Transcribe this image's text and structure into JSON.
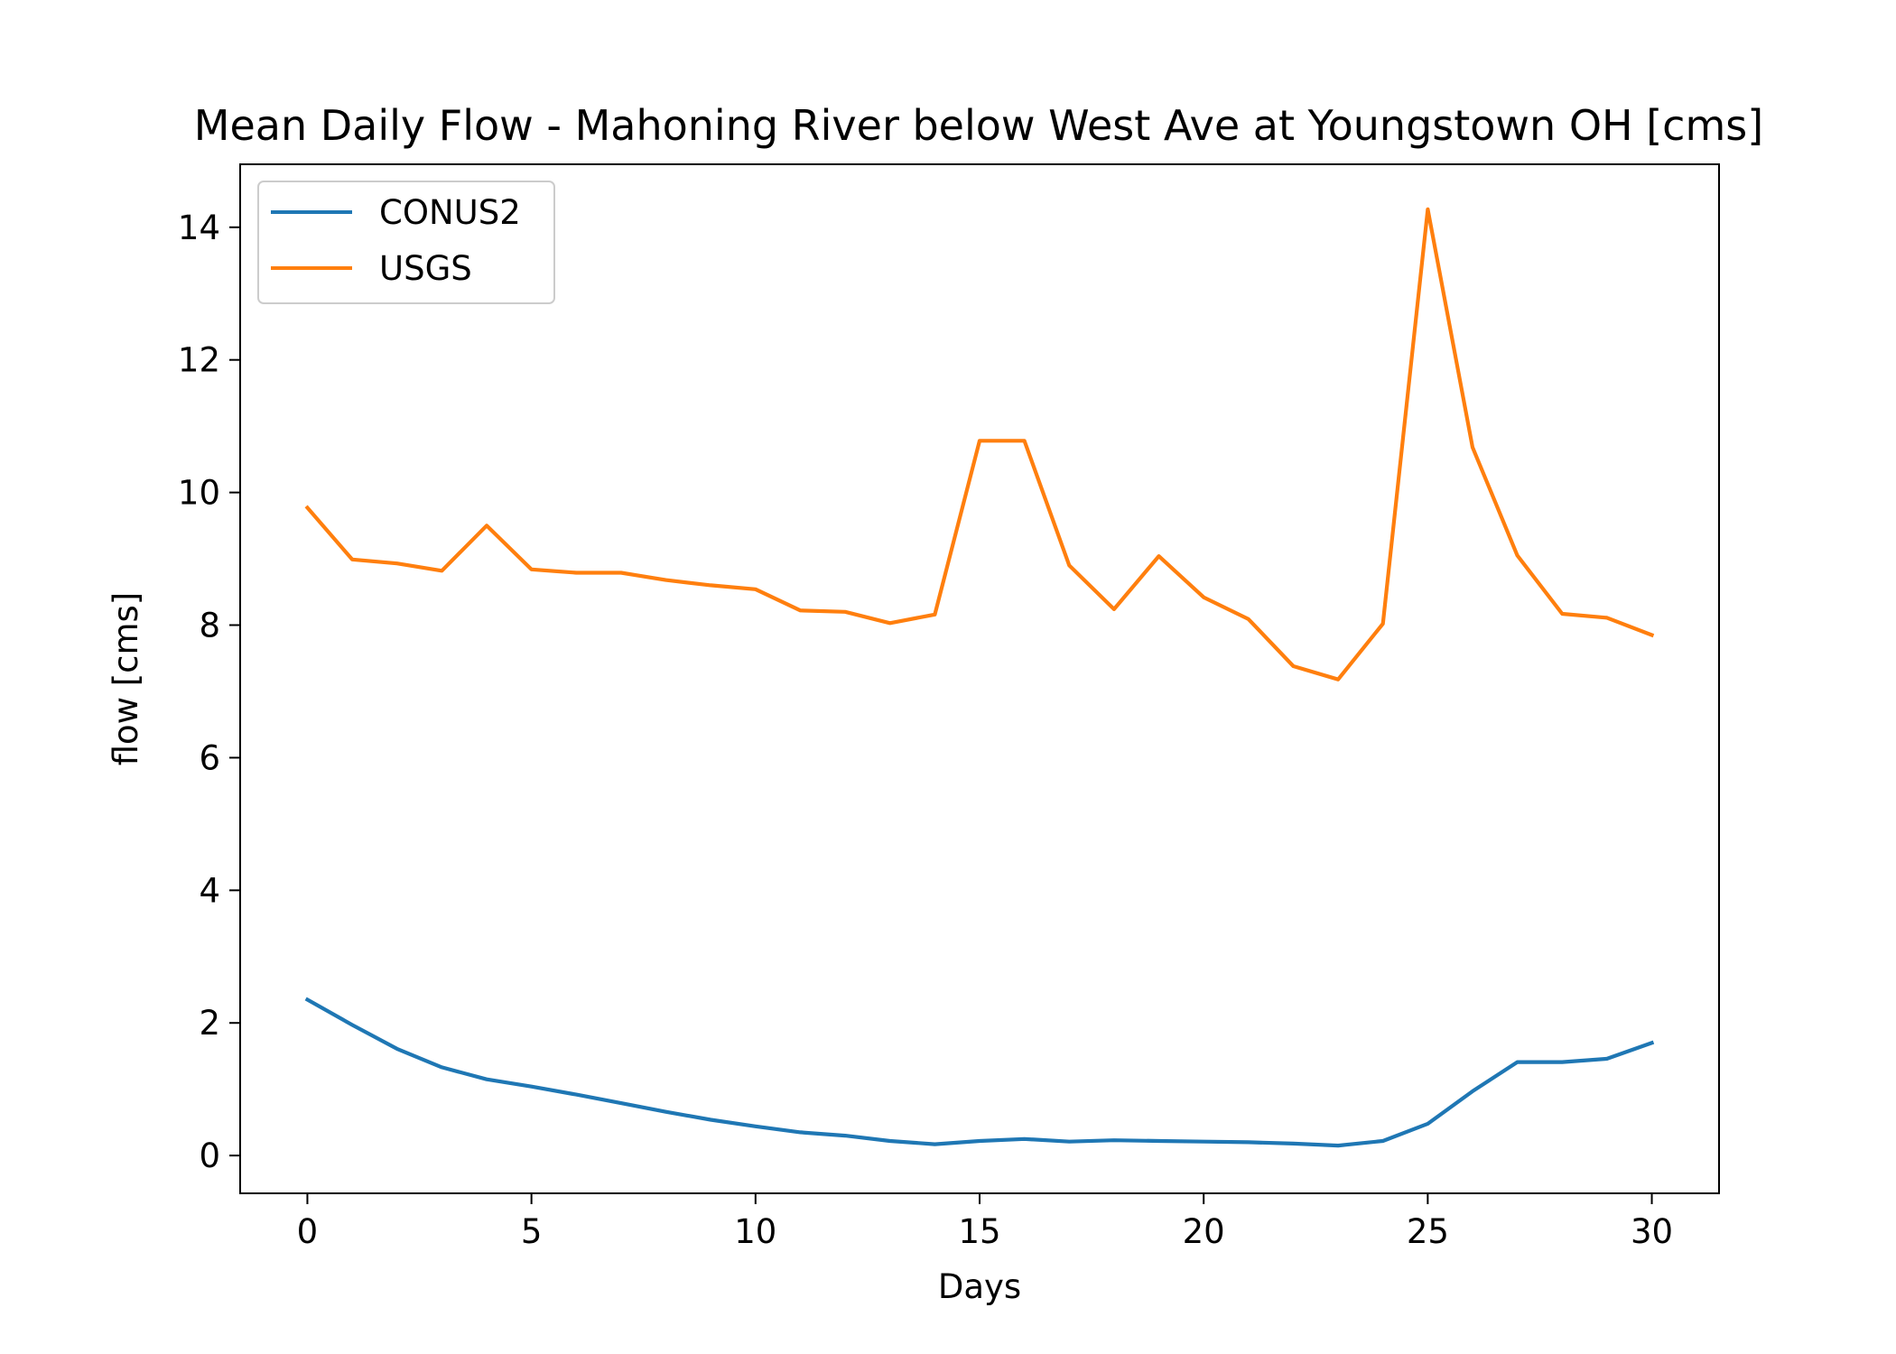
{
  "chart_data": {
    "type": "line",
    "title": "Mean Daily Flow - Mahoning River below West Ave at Youngstown OH [cms]",
    "xlabel": "Days",
    "ylabel": "flow [cms]",
    "xlim": [
      -1.5,
      31.5
    ],
    "ylim": [
      -0.57,
      14.95
    ],
    "xticks": [
      0,
      5,
      10,
      15,
      20,
      25,
      30
    ],
    "xtick_labels": [
      "0",
      "5",
      "10",
      "15",
      "20",
      "25",
      "30"
    ],
    "yticks": [
      0,
      2,
      4,
      6,
      8,
      10,
      12,
      14
    ],
    "ytick_labels": [
      "0",
      "2",
      "4",
      "6",
      "8",
      "10",
      "12",
      "14"
    ],
    "grid": false,
    "legend_position": "top-left",
    "x": [
      0,
      1,
      2,
      3,
      4,
      5,
      6,
      7,
      8,
      9,
      10,
      11,
      12,
      13,
      14,
      15,
      16,
      17,
      18,
      19,
      20,
      21,
      22,
      23,
      24,
      25,
      26,
      27,
      28,
      29,
      30
    ],
    "series": [
      {
        "name": "CONUS2",
        "color": "#1f77b4",
        "values": [
          2.35,
          1.97,
          1.61,
          1.33,
          1.15,
          1.04,
          0.92,
          0.79,
          0.66,
          0.54,
          0.44,
          0.35,
          0.3,
          0.22,
          0.17,
          0.22,
          0.25,
          0.21,
          0.23,
          0.22,
          0.21,
          0.2,
          0.18,
          0.15,
          0.22,
          0.48,
          0.97,
          1.41,
          1.41,
          1.46,
          1.7
        ]
      },
      {
        "name": "USGS",
        "color": "#ff7f0e",
        "values": [
          9.77,
          8.99,
          8.93,
          8.82,
          9.5,
          8.84,
          8.79,
          8.79,
          8.68,
          8.6,
          8.54,
          8.22,
          8.2,
          8.03,
          8.16,
          10.78,
          10.78,
          8.9,
          8.24,
          9.04,
          8.42,
          8.09,
          7.38,
          7.18,
          8.02,
          14.27,
          10.68,
          9.05,
          8.17,
          8.11,
          7.85
        ]
      }
    ]
  }
}
